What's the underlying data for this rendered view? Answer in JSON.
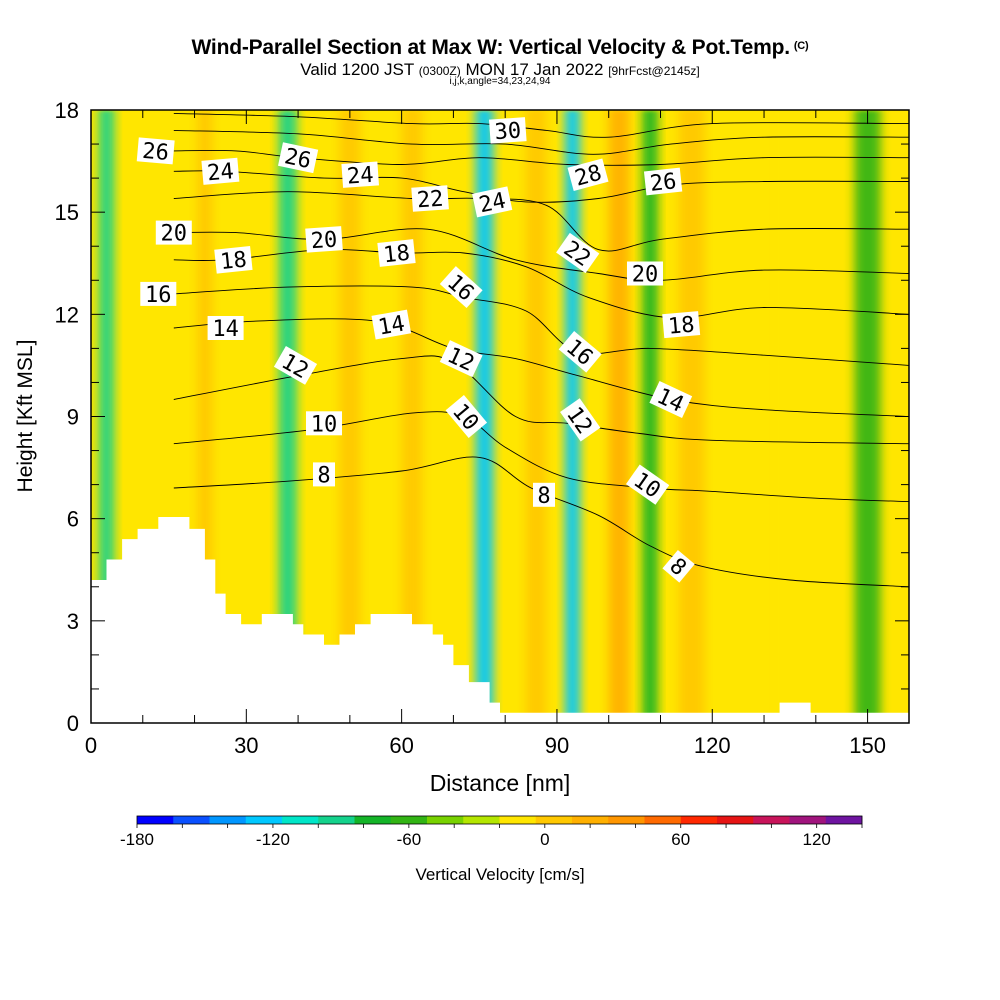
{
  "titles": {
    "main": "Wind-Parallel Section at Max W: Vertical Velocity & Pot.Temp.",
    "copyright": "(C)",
    "valid_prefix": "Valid 1200 JST",
    "valid_utc": "(0300Z)",
    "valid_date": "MON 17 Jan 2022",
    "forecast": "[9hrFcst@2145z]",
    "indices": "i,j,k,angle=34,23,24,94"
  },
  "chart_data": {
    "type": "heatmap",
    "title": "Wind-Parallel Section at Max W: Vertical Velocity & Pot.Temp.",
    "xlabel": "Distance [nm]",
    "ylabel": "Height [Kft MSL]",
    "xlim": [
      0,
      158
    ],
    "ylim": [
      0,
      18
    ],
    "xticks": [
      0,
      30,
      60,
      90,
      120,
      150
    ],
    "yticks": [
      0,
      3,
      6,
      9,
      12,
      15,
      18
    ],
    "grid": false,
    "colorbar": {
      "label": "Vertical Velocity [cm/s]",
      "min": -180,
      "max": 140,
      "step": 20,
      "tick_values": [
        -180,
        -120,
        -60,
        0,
        60,
        120
      ],
      "colors": [
        "#0000ff",
        "#0a50ff",
        "#0096ff",
        "#00c8ff",
        "#00e6c8",
        "#14d28c",
        "#14b428",
        "#32b414",
        "#78d200",
        "#b4e600",
        "#ffe600",
        "#ffc800",
        "#ffb000",
        "#ff9600",
        "#ff6a00",
        "#ff2800",
        "#e61414",
        "#c8145a",
        "#a0147d",
        "#6e14a0"
      ]
    },
    "vertical_velocity_bands": [
      {
        "x": 3,
        "w": 3,
        "v": -80
      },
      {
        "x": 14,
        "w": 4,
        "v": 20
      },
      {
        "x": 22,
        "w": 3,
        "v": 40
      },
      {
        "x": 38,
        "w": 3.5,
        "v": -80
      },
      {
        "x": 50,
        "w": 4,
        "v": 40
      },
      {
        "x": 62,
        "w": 4,
        "v": 40
      },
      {
        "x": 76,
        "w": 3.5,
        "v": -110
      },
      {
        "x": 86,
        "w": 4,
        "v": 50
      },
      {
        "x": 93,
        "w": 3,
        "v": -120
      },
      {
        "x": 102,
        "w": 4,
        "v": 75
      },
      {
        "x": 108,
        "w": 3,
        "v": -50
      },
      {
        "x": 116,
        "w": 5,
        "v": 40
      },
      {
        "x": 128,
        "w": 6,
        "v": 30
      },
      {
        "x": 150,
        "w": 5,
        "v": -30
      }
    ],
    "terrain": [
      [
        0,
        4.2
      ],
      [
        3,
        4.2
      ],
      [
        3,
        4.8
      ],
      [
        6,
        4.8
      ],
      [
        6,
        5.4
      ],
      [
        9,
        5.4
      ],
      [
        9,
        5.7
      ],
      [
        13,
        5.7
      ],
      [
        13,
        6.05
      ],
      [
        19,
        6.05
      ],
      [
        19,
        5.7
      ],
      [
        22,
        5.7
      ],
      [
        22,
        4.8
      ],
      [
        24,
        4.8
      ],
      [
        24,
        3.8
      ],
      [
        26,
        3.8
      ],
      [
        26,
        3.2
      ],
      [
        29,
        3.2
      ],
      [
        29,
        2.9
      ],
      [
        33,
        2.9
      ],
      [
        33,
        3.2
      ],
      [
        39,
        3.2
      ],
      [
        39,
        2.9
      ],
      [
        41,
        2.9
      ],
      [
        41,
        2.6
      ],
      [
        45,
        2.6
      ],
      [
        45,
        2.3
      ],
      [
        48,
        2.3
      ],
      [
        48,
        2.6
      ],
      [
        51,
        2.6
      ],
      [
        51,
        2.9
      ],
      [
        54,
        2.9
      ],
      [
        54,
        3.2
      ],
      [
        62,
        3.2
      ],
      [
        62,
        2.9
      ],
      [
        66,
        2.9
      ],
      [
        66,
        2.6
      ],
      [
        68,
        2.6
      ],
      [
        68,
        2.3
      ],
      [
        70,
        2.3
      ],
      [
        70,
        1.7
      ],
      [
        73,
        1.7
      ],
      [
        73,
        1.2
      ],
      [
        77,
        1.2
      ],
      [
        77,
        0.6
      ],
      [
        79,
        0.6
      ],
      [
        79,
        0.3
      ],
      [
        133,
        0.3
      ],
      [
        133,
        0.6
      ],
      [
        139,
        0.6
      ],
      [
        139,
        0.3
      ],
      [
        158,
        0.3
      ]
    ],
    "theta_contours": [
      {
        "value": 8,
        "label": "8",
        "points": [
          [
            16,
            6.9
          ],
          [
            38,
            7.1
          ],
          [
            60,
            7.4
          ],
          [
            75,
            7.8
          ],
          [
            85,
            6.9
          ],
          [
            98,
            6.1
          ],
          [
            108,
            5.2
          ],
          [
            118,
            4.6
          ],
          [
            135,
            4.2
          ],
          [
            158,
            4.0
          ]
        ]
      },
      {
        "value": 10,
        "label": "10",
        "points": [
          [
            16,
            8.2
          ],
          [
            42,
            8.6
          ],
          [
            62,
            9.1
          ],
          [
            72,
            9.0
          ],
          [
            80,
            8.1
          ],
          [
            92,
            7.2
          ],
          [
            108,
            6.9
          ],
          [
            120,
            6.8
          ],
          [
            140,
            6.6
          ],
          [
            158,
            6.5
          ]
        ]
      },
      {
        "value": 12,
        "label": "12",
        "points": [
          [
            16,
            9.5
          ],
          [
            40,
            10.2
          ],
          [
            60,
            10.7
          ],
          [
            70,
            10.6
          ],
          [
            82,
            9.0
          ],
          [
            92,
            8.8
          ],
          [
            106,
            8.5
          ],
          [
            120,
            8.3
          ],
          [
            158,
            8.2
          ]
        ]
      },
      {
        "value": 14,
        "label": "14",
        "points": [
          [
            16,
            11.6
          ],
          [
            32,
            11.8
          ],
          [
            55,
            11.8
          ],
          [
            70,
            11.0
          ],
          [
            82,
            10.7
          ],
          [
            94,
            10.2
          ],
          [
            112,
            9.5
          ],
          [
            130,
            9.2
          ],
          [
            158,
            9.0
          ]
        ]
      },
      {
        "value": 16,
        "label": "16",
        "points": [
          [
            16,
            12.6
          ],
          [
            38,
            12.8
          ],
          [
            62,
            12.8
          ],
          [
            72,
            12.5
          ],
          [
            84,
            12.1
          ],
          [
            94,
            10.9
          ],
          [
            108,
            11.0
          ],
          [
            130,
            10.8
          ],
          [
            158,
            10.5
          ]
        ]
      },
      {
        "value": 18,
        "label": "18",
        "points": [
          [
            16,
            13.6
          ],
          [
            26,
            13.6
          ],
          [
            45,
            13.9
          ],
          [
            60,
            13.8
          ],
          [
            72,
            13.8
          ],
          [
            84,
            13.4
          ],
          [
            96,
            12.5
          ],
          [
            112,
            11.9
          ],
          [
            130,
            12.2
          ],
          [
            158,
            12.0
          ]
        ]
      },
      {
        "value": 20,
        "label": "20",
        "points": [
          [
            16,
            14.4
          ],
          [
            28,
            14.4
          ],
          [
            45,
            14.2
          ],
          [
            65,
            14.5
          ],
          [
            82,
            13.6
          ],
          [
            98,
            13.2
          ],
          [
            110,
            13.0
          ],
          [
            130,
            13.3
          ],
          [
            158,
            13.2
          ]
        ]
      },
      {
        "value": 22,
        "label": "22",
        "points": [
          [
            16,
            15.4
          ],
          [
            38,
            15.6
          ],
          [
            62,
            15.4
          ],
          [
            75,
            15.4
          ],
          [
            88,
            15.2
          ],
          [
            98,
            13.9
          ],
          [
            110,
            14.2
          ],
          [
            130,
            14.5
          ],
          [
            158,
            14.5
          ]
        ]
      },
      {
        "value": 24,
        "label": "24",
        "points": [
          [
            16,
            16.2
          ],
          [
            26,
            16.2
          ],
          [
            45,
            16.0
          ],
          [
            60,
            16.0
          ],
          [
            72,
            15.6
          ],
          [
            84,
            15.3
          ],
          [
            98,
            15.4
          ],
          [
            112,
            15.8
          ],
          [
            130,
            15.9
          ],
          [
            158,
            15.9
          ]
        ]
      },
      {
        "value": 26,
        "label": "26",
        "points": [
          [
            16,
            16.8
          ],
          [
            28,
            16.8
          ],
          [
            40,
            16.6
          ],
          [
            60,
            16.4
          ],
          [
            75,
            16.6
          ],
          [
            92,
            16.4
          ],
          [
            110,
            16.4
          ],
          [
            130,
            16.6
          ],
          [
            158,
            16.6
          ]
        ]
      },
      {
        "value": 28,
        "label": "28",
        "points": [
          [
            16,
            17.4
          ],
          [
            40,
            17.3
          ],
          [
            62,
            17.0
          ],
          [
            80,
            17.0
          ],
          [
            97,
            16.7
          ],
          [
            112,
            17.0
          ],
          [
            130,
            17.2
          ],
          [
            158,
            17.2
          ]
        ]
      },
      {
        "value": 30,
        "label": "30",
        "points": [
          [
            16,
            17.9
          ],
          [
            40,
            17.8
          ],
          [
            62,
            17.6
          ],
          [
            75,
            17.6
          ],
          [
            88,
            17.4
          ],
          [
            100,
            17.2
          ],
          [
            120,
            17.6
          ],
          [
            158,
            17.6
          ]
        ]
      }
    ],
    "contour_labels": [
      {
        "text": "26",
        "x": 12.5,
        "y": 16.8,
        "angle": 5
      },
      {
        "text": "24",
        "x": 25,
        "y": 16.2,
        "angle": -5
      },
      {
        "text": "26",
        "x": 40,
        "y": 16.6,
        "angle": 12
      },
      {
        "text": "24",
        "x": 52,
        "y": 16.1,
        "angle": -4
      },
      {
        "text": "22",
        "x": 65.5,
        "y": 15.4,
        "angle": -4
      },
      {
        "text": "30",
        "x": 80.5,
        "y": 17.4,
        "angle": -4
      },
      {
        "text": "24",
        "x": 77.5,
        "y": 15.3,
        "angle": -12
      },
      {
        "text": "28",
        "x": 96,
        "y": 16.1,
        "angle": -15
      },
      {
        "text": "26",
        "x": 110.5,
        "y": 15.9,
        "angle": -6
      },
      {
        "text": "20",
        "x": 16,
        "y": 14.4,
        "angle": 0
      },
      {
        "text": "18",
        "x": 27.5,
        "y": 13.6,
        "angle": -6
      },
      {
        "text": "20",
        "x": 45,
        "y": 14.2,
        "angle": -4
      },
      {
        "text": "18",
        "x": 59,
        "y": 13.8,
        "angle": -6
      },
      {
        "text": "16",
        "x": 71.5,
        "y": 12.8,
        "angle": 42
      },
      {
        "text": "22",
        "x": 94,
        "y": 13.8,
        "angle": 35
      },
      {
        "text": "20",
        "x": 107,
        "y": 13.2,
        "angle": 0
      },
      {
        "text": "16",
        "x": 13,
        "y": 12.6,
        "angle": 0
      },
      {
        "text": "14",
        "x": 26,
        "y": 11.6,
        "angle": 0
      },
      {
        "text": "14",
        "x": 58,
        "y": 11.7,
        "angle": -10
      },
      {
        "text": "18",
        "x": 114,
        "y": 11.7,
        "angle": -5
      },
      {
        "text": "12",
        "x": 39.5,
        "y": 10.5,
        "angle": 30
      },
      {
        "text": "12",
        "x": 71.5,
        "y": 10.7,
        "angle": 25
      },
      {
        "text": "16",
        "x": 94.5,
        "y": 10.9,
        "angle": 40
      },
      {
        "text": "14",
        "x": 112,
        "y": 9.5,
        "angle": 25
      },
      {
        "text": "10",
        "x": 45,
        "y": 8.8,
        "angle": 0
      },
      {
        "text": "10",
        "x": 72.5,
        "y": 9.0,
        "angle": 50
      },
      {
        "text": "12",
        "x": 94.5,
        "y": 8.9,
        "angle": 55
      },
      {
        "text": "10",
        "x": 107.5,
        "y": 7.0,
        "angle": 35
      },
      {
        "text": "8",
        "x": 45,
        "y": 7.3,
        "angle": 0
      },
      {
        "text": "8",
        "x": 87.5,
        "y": 6.7,
        "angle": 0
      },
      {
        "text": "8",
        "x": 113.5,
        "y": 4.6,
        "angle": 40
      }
    ]
  }
}
